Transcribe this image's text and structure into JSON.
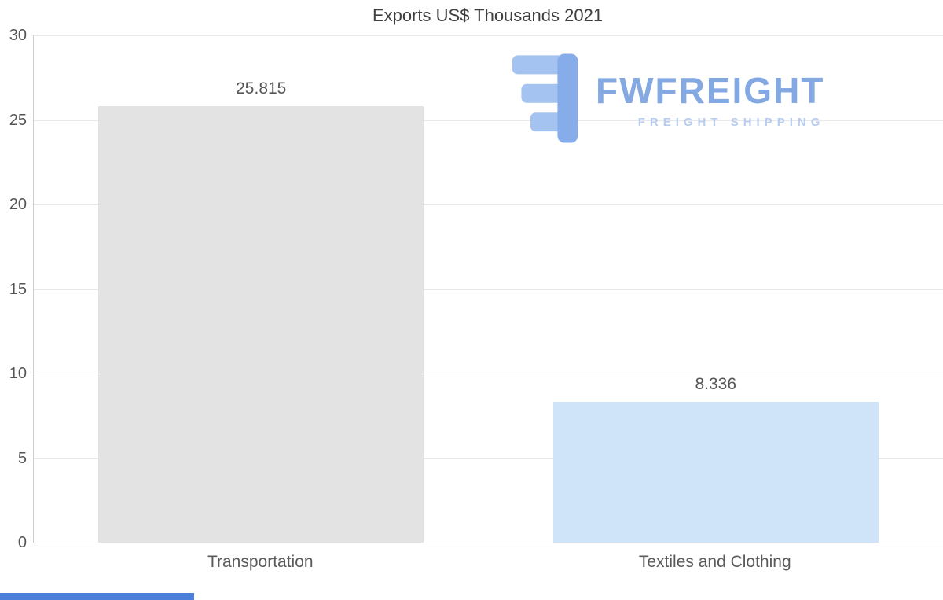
{
  "chart_data": {
    "type": "bar",
    "title": "Exports US$ Thousands 2021",
    "categories": [
      "Transportation",
      "Textiles and Clothing"
    ],
    "values": [
      25.815,
      8.336
    ],
    "value_labels": [
      "25.815",
      "8.336"
    ],
    "bar_colors": [
      "#e3e3e3",
      "#cfe3f9"
    ],
    "xlabel": "",
    "ylabel": "",
    "ylim": [
      0,
      30
    ],
    "yticks": [
      0,
      5,
      10,
      15,
      20,
      25,
      30
    ],
    "grid": true,
    "legend": "none"
  },
  "logo": {
    "name": "FWFREIGHT",
    "tagline": "FREIGHT SHIPPING",
    "name_color": "#83a8e2",
    "tagline_color": "#b9cdf0",
    "icon": "fwfreight-f-blocks-icon",
    "icon_color_light": "#a4c3f0",
    "icon_color_dark": "#86ade9"
  },
  "decor": {
    "bottom_strip_color": "#4c7fd9"
  }
}
